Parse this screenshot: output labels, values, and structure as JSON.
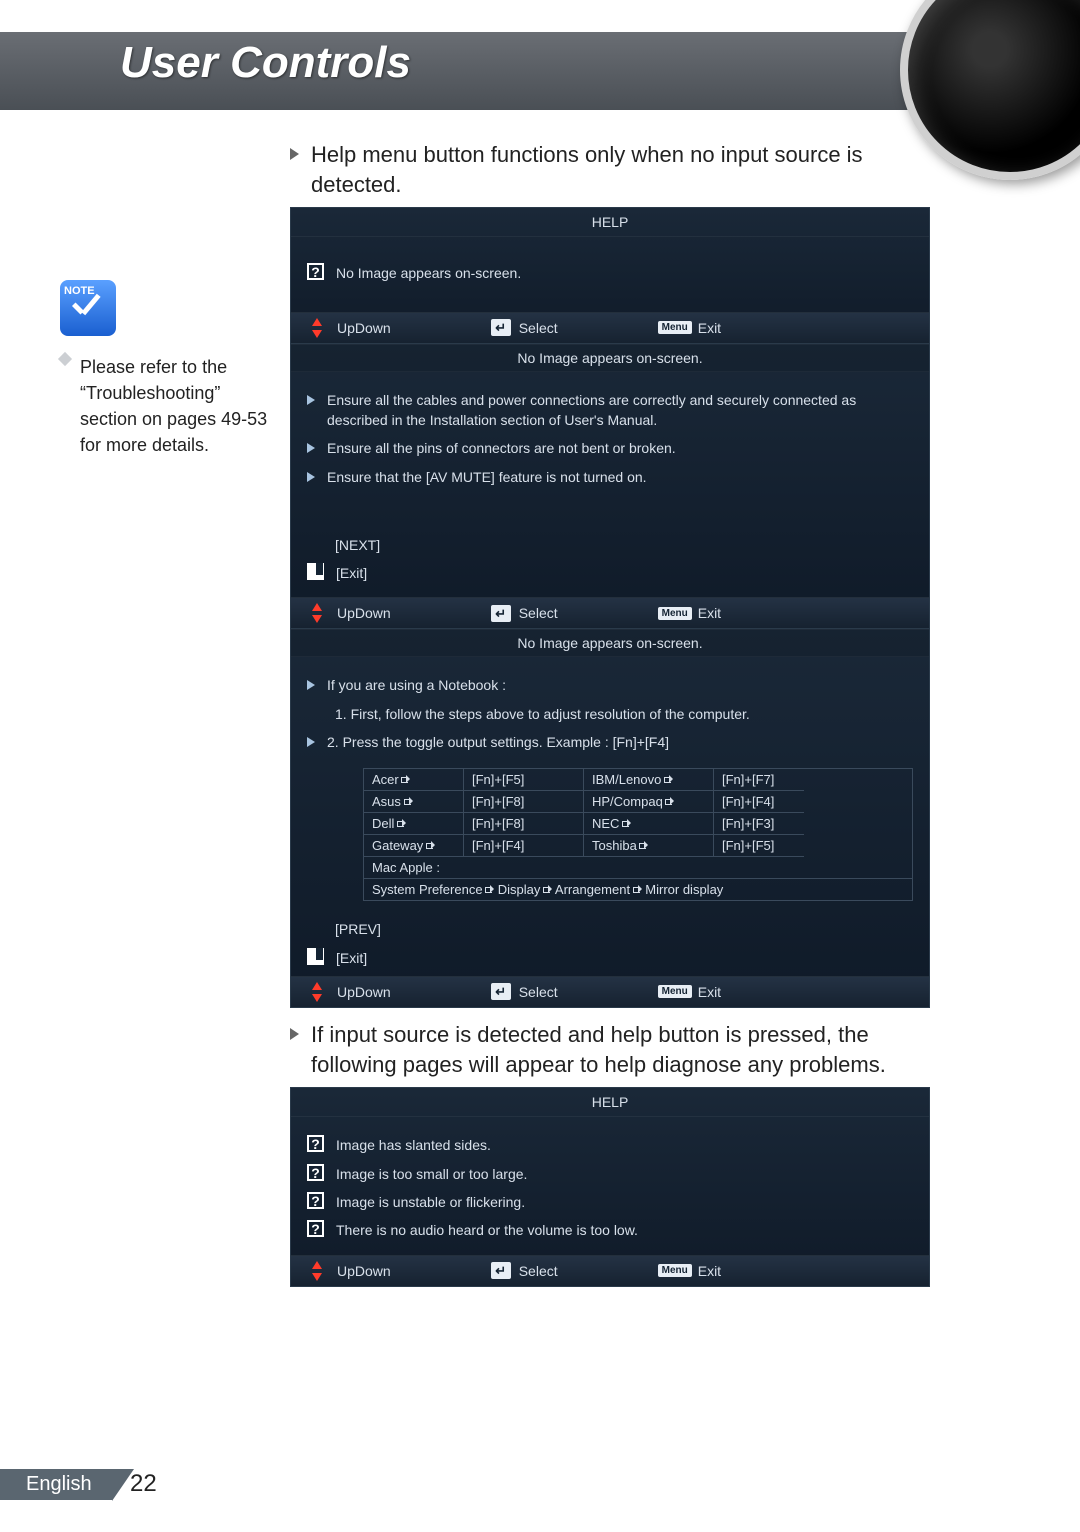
{
  "header": {
    "title": "User Controls"
  },
  "sidebar": {
    "note_label": "NOTE",
    "note_text": "Please refer to the “Troubleshooting” section on pages 49-53 for more details."
  },
  "main": {
    "bullet1": "Help menu button functions only when no input source is detected.",
    "bullet2": "If input source is detected and help button is pressed, the following pages will appear to help diagnose any problems."
  },
  "osd_common": {
    "help_title": "HELP",
    "updown": "UpDown",
    "select": "Select",
    "exit": "Exit",
    "menu": "Menu",
    "enter_glyph": "↵",
    "next": "[NEXT]",
    "prev": "[PREV]",
    "exit_bracket": "[Exit]",
    "no_image": "No Image appears on-screen."
  },
  "panel1": {
    "item": "No Image appears on-screen."
  },
  "panel2": {
    "items": [
      "Ensure all the cables and power connections are correctly and securely connected as described in the Installation section of User's Manual.",
      "Ensure all the pins of connectors are not bent or broken.",
      "Ensure that the [AV MUTE] feature is not turned on."
    ]
  },
  "panel3": {
    "line1": "If you are using a Notebook :",
    "line2": "1. First, follow the steps above to adjust resolution of the computer.",
    "line3": "2. Press the toggle output settings. Example : [Fn]+[F4]",
    "shortcuts": [
      {
        "brand": "Acer",
        "key": "[Fn]+[F5]",
        "brand2": "IBM/Lenovo",
        "key2": "[Fn]+[F7]"
      },
      {
        "brand": "Asus",
        "key": "[Fn]+[F8]",
        "brand2": "HP/Compaq",
        "key2": "[Fn]+[F4]"
      },
      {
        "brand": "Dell",
        "key": "[Fn]+[F8]",
        "brand2": "NEC",
        "key2": "[Fn]+[F3]"
      },
      {
        "brand": "Gateway",
        "key": "[Fn]+[F4]",
        "brand2": "Toshiba",
        "key2": "[Fn]+[F5]"
      }
    ],
    "mac_label": "Mac Apple :",
    "mac_path": [
      "System Preference",
      "Display",
      "Arrangement",
      "Mirror display"
    ]
  },
  "panel4": {
    "items": [
      "Image has slanted sides.",
      "Image is too small or too large.",
      "Image is unstable or flickering.",
      "There is no audio heard or the volume is too low."
    ]
  },
  "footer": {
    "language": "English",
    "page": "22"
  },
  "colors": {
    "header_grad_top": "#6a6e74",
    "header_grad_bot": "#4a4f55",
    "osd_bg_top": "#1a2838",
    "osd_bg_bot": "#0f1a28",
    "osd_text": "#d8e0ea",
    "accent_red": "#ff3b2a",
    "note_grad_top": "#5aa0ff",
    "note_grad_bot": "#1a5fd0",
    "footer_tab": "#5a6670"
  }
}
